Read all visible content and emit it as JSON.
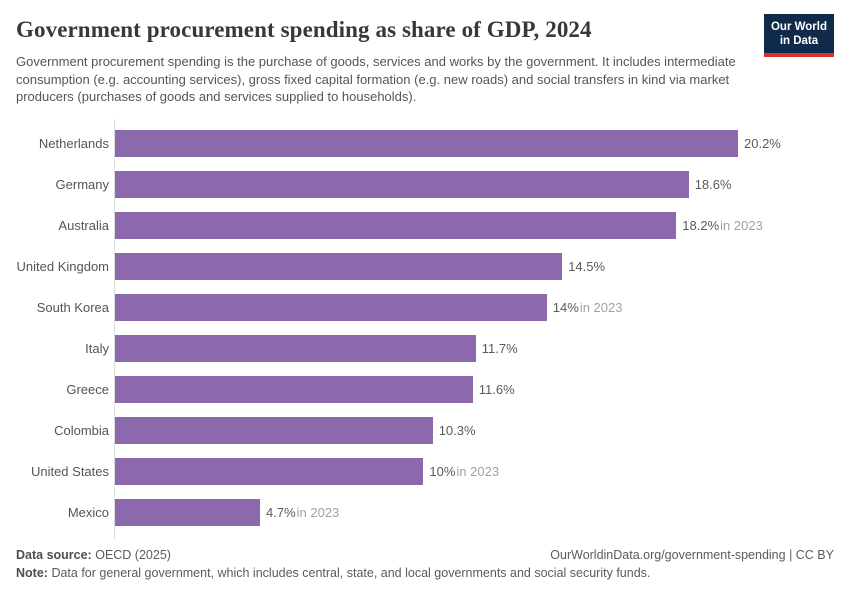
{
  "header": {
    "title": "Government procurement spending as share of GDP, 2024",
    "subtitle": "Government procurement spending is the purchase of goods, services and works by the government. It includes intermediate consumption (e.g. accounting services), gross fixed capital formation (e.g. new roads) and social transfers in kind via market producers (purchases of goods and services supplied to households).",
    "logo": {
      "line1": "Our World",
      "line2": "in Data",
      "bg_color": "#102a4c",
      "accent_color": "#d5342b"
    }
  },
  "chart_data": {
    "type": "bar",
    "orientation": "horizontal",
    "title": "Government procurement spending as share of GDP, 2024",
    "unit": "%",
    "xlim": [
      0,
      20.2
    ],
    "bar_color": "#8c68ac",
    "grid": false,
    "legend": "none",
    "categories": [
      "Netherlands",
      "Germany",
      "Australia",
      "United Kingdom",
      "South Korea",
      "Italy",
      "Greece",
      "Colombia",
      "United States",
      "Mexico"
    ],
    "values": [
      20.2,
      18.6,
      18.2,
      14.5,
      14,
      11.7,
      11.6,
      10.3,
      10,
      4.7
    ],
    "rows": [
      {
        "label": "Netherlands",
        "value": 20.2,
        "display": "20.2%",
        "note": ""
      },
      {
        "label": "Germany",
        "value": 18.6,
        "display": "18.6%",
        "note": ""
      },
      {
        "label": "Australia",
        "value": 18.2,
        "display": "18.2%",
        "note": "in 2023"
      },
      {
        "label": "United Kingdom",
        "value": 14.5,
        "display": "14.5%",
        "note": ""
      },
      {
        "label": "South Korea",
        "value": 14,
        "display": "14%",
        "note": "in 2023"
      },
      {
        "label": "Italy",
        "value": 11.7,
        "display": "11.7%",
        "note": ""
      },
      {
        "label": "Greece",
        "value": 11.6,
        "display": "11.6%",
        "note": ""
      },
      {
        "label": "Colombia",
        "value": 10.3,
        "display": "10.3%",
        "note": ""
      },
      {
        "label": "United States",
        "value": 10,
        "display": "10%",
        "note": "in 2023"
      },
      {
        "label": "Mexico",
        "value": 4.7,
        "display": "4.7%",
        "note": "in 2023"
      }
    ]
  },
  "footer": {
    "source_label": "Data source:",
    "source_value": "OECD (2025)",
    "link": "OurWorldinData.org/government-spending | CC BY",
    "note_label": "Note:",
    "note_value": "Data for general government, which includes central, state, and local governments and social security funds."
  }
}
